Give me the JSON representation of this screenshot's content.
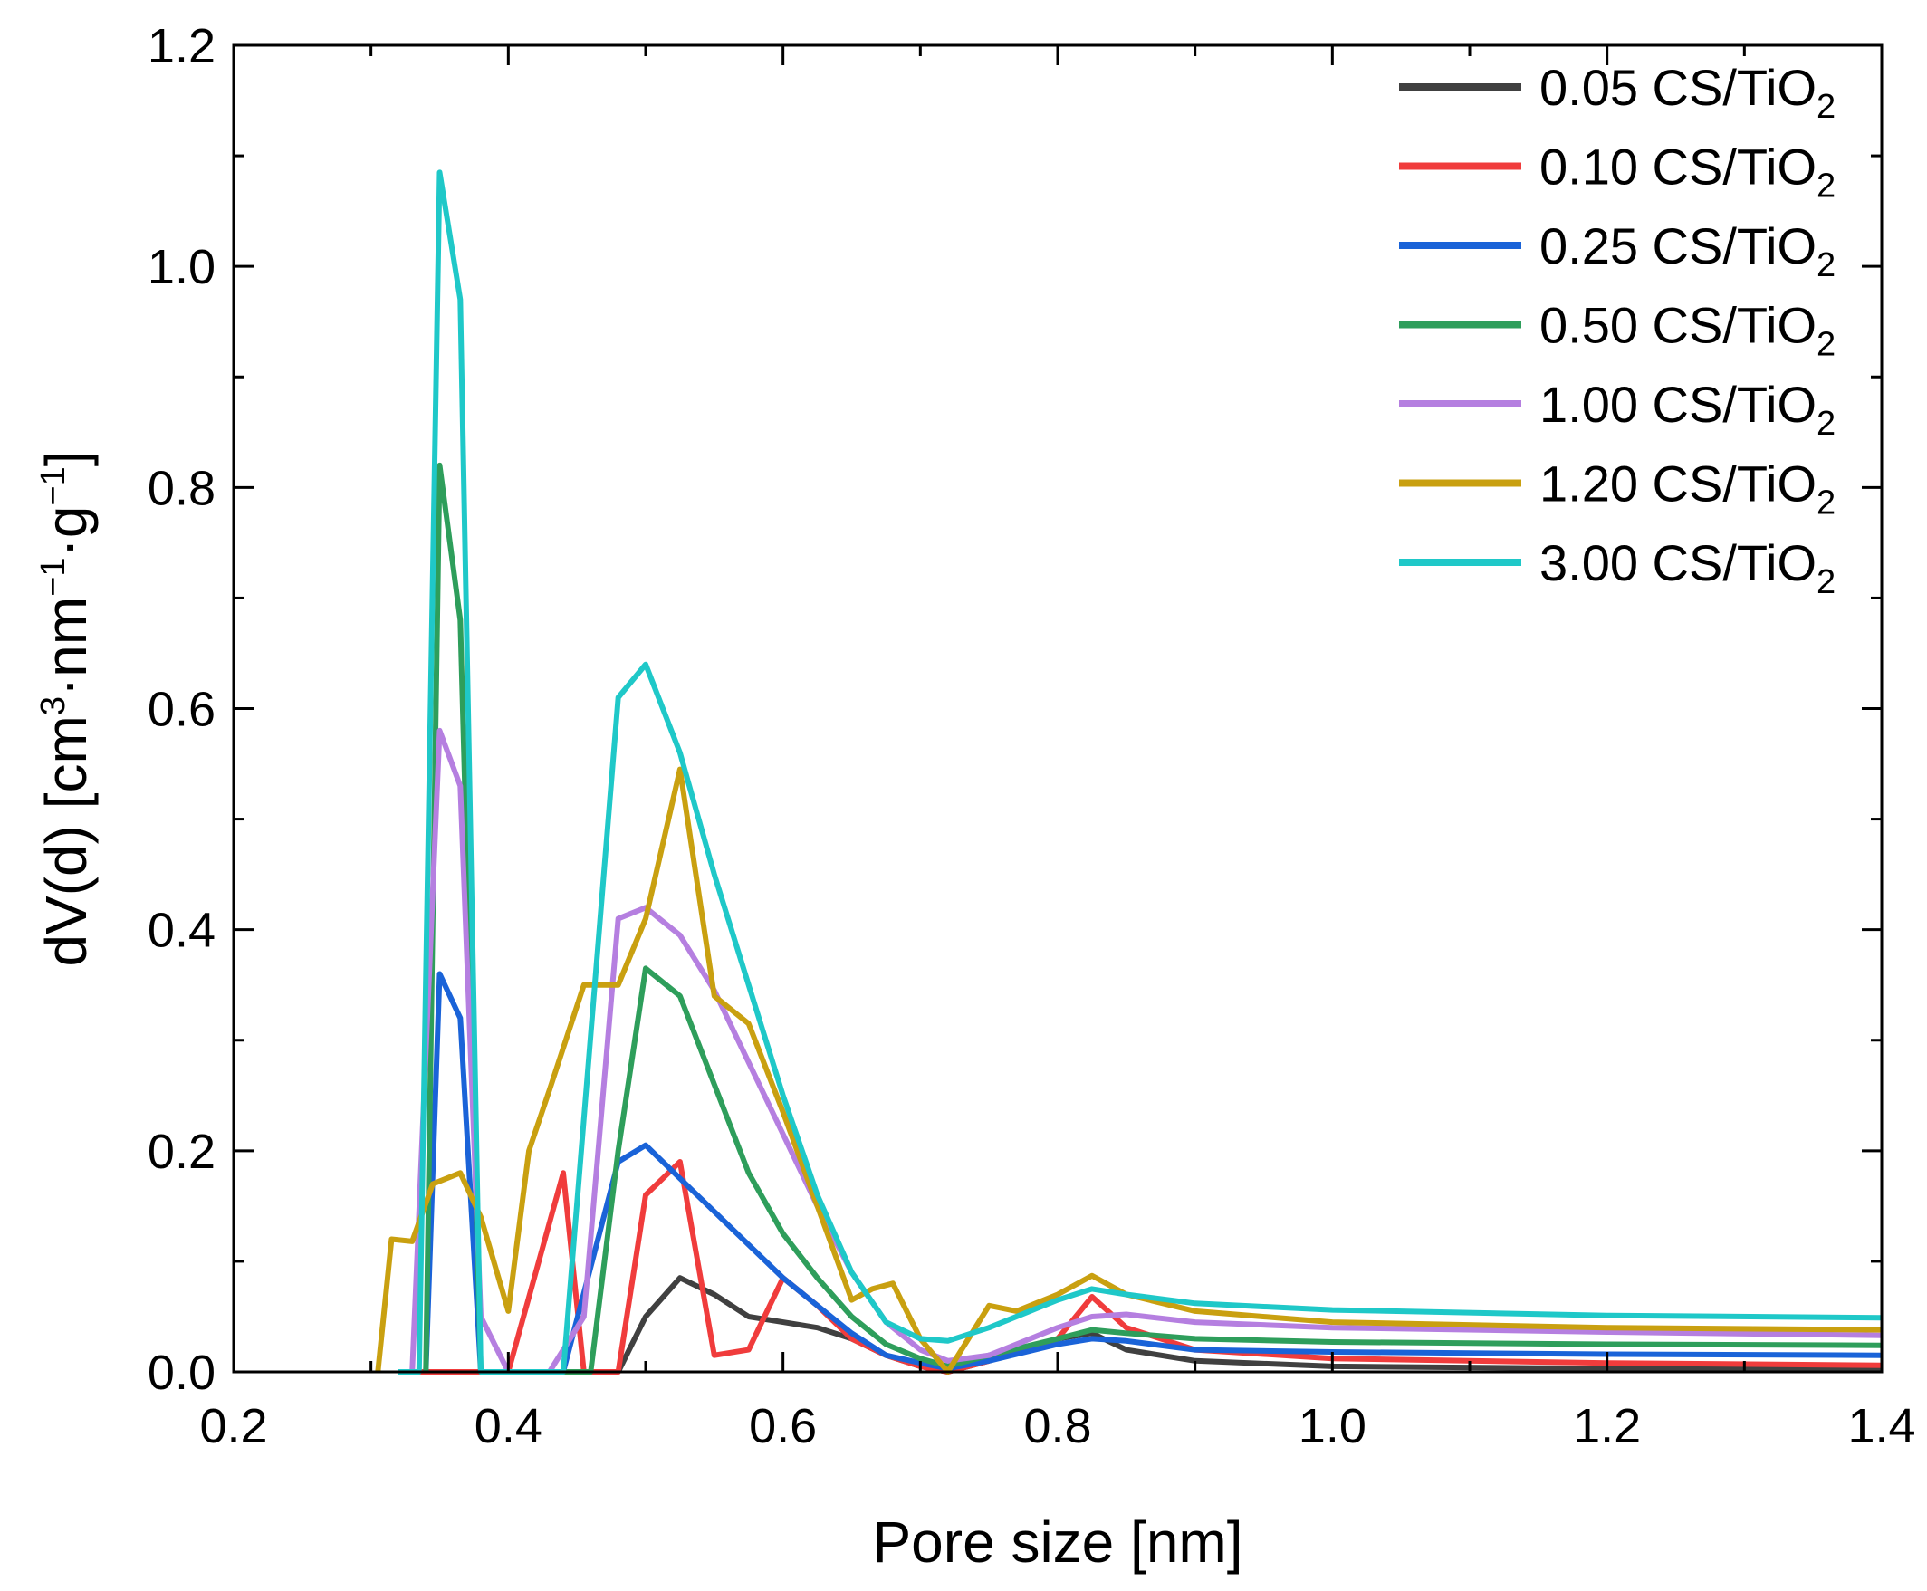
{
  "chart_data": {
    "type": "line",
    "title": "",
    "xlabel": "Pore size [nm]",
    "ylabel": {
      "base": "dV(d) [cm",
      "sup1": "3",
      "mid": "·nm",
      "sup2": "−1",
      "mid2": "·g",
      "sup3": "−1",
      "end": "]"
    },
    "xlim": [
      0.2,
      1.4
    ],
    "ylim": [
      0.0,
      1.2
    ],
    "xticks": [
      "0.2",
      "0.4",
      "0.6",
      "0.8",
      "1.0",
      "1.2",
      "1.4"
    ],
    "yticks": [
      "0.0",
      "0.2",
      "0.4",
      "0.6",
      "0.8",
      "1.0",
      "1.2"
    ],
    "legend_position": "top-right",
    "series": [
      {
        "name": "0.05 CS/TiO",
        "sub": "2",
        "color": "#404040",
        "points": [
          [
            0.48,
            0.0
          ],
          [
            0.5,
            0.05
          ],
          [
            0.525,
            0.085
          ],
          [
            0.55,
            0.07
          ],
          [
            0.575,
            0.05
          ],
          [
            0.6,
            0.045
          ],
          [
            0.625,
            0.04
          ],
          [
            0.65,
            0.03
          ],
          [
            0.675,
            0.015
          ],
          [
            0.7,
            0.005
          ],
          [
            0.72,
            0.0
          ],
          [
            0.75,
            0.01
          ],
          [
            0.8,
            0.03
          ],
          [
            0.825,
            0.035
          ],
          [
            0.85,
            0.02
          ],
          [
            0.9,
            0.01
          ],
          [
            1.0,
            0.005
          ],
          [
            1.2,
            0.003
          ],
          [
            1.4,
            0.002
          ]
        ]
      },
      {
        "name": "0.10 CS/TiO",
        "sub": "2",
        "color": "#f03c3c",
        "points": [
          [
            0.33,
            0.0
          ],
          [
            0.4,
            0.0
          ],
          [
            0.44,
            0.18
          ],
          [
            0.455,
            0.0
          ],
          [
            0.48,
            0.0
          ],
          [
            0.5,
            0.16
          ],
          [
            0.525,
            0.19
          ],
          [
            0.55,
            0.015
          ],
          [
            0.575,
            0.02
          ],
          [
            0.6,
            0.085
          ],
          [
            0.625,
            0.06
          ],
          [
            0.65,
            0.03
          ],
          [
            0.675,
            0.015
          ],
          [
            0.7,
            0.005
          ],
          [
            0.72,
            0.0
          ],
          [
            0.75,
            0.01
          ],
          [
            0.8,
            0.03
          ],
          [
            0.825,
            0.068
          ],
          [
            0.85,
            0.04
          ],
          [
            0.9,
            0.02
          ],
          [
            1.0,
            0.012
          ],
          [
            1.2,
            0.008
          ],
          [
            1.4,
            0.006
          ]
        ]
      },
      {
        "name": "0.25 CS/TiO",
        "sub": "2",
        "color": "#1a63d8",
        "points": [
          [
            0.34,
            0.0
          ],
          [
            0.35,
            0.36
          ],
          [
            0.365,
            0.32
          ],
          [
            0.38,
            0.0
          ],
          [
            0.44,
            0.0
          ],
          [
            0.48,
            0.19
          ],
          [
            0.5,
            0.205
          ],
          [
            0.525,
            0.175
          ],
          [
            0.55,
            0.145
          ],
          [
            0.575,
            0.115
          ],
          [
            0.6,
            0.085
          ],
          [
            0.625,
            0.06
          ],
          [
            0.65,
            0.035
          ],
          [
            0.675,
            0.015
          ],
          [
            0.7,
            0.008
          ],
          [
            0.72,
            0.003
          ],
          [
            0.75,
            0.01
          ],
          [
            0.8,
            0.025
          ],
          [
            0.825,
            0.03
          ],
          [
            0.85,
            0.028
          ],
          [
            0.9,
            0.02
          ],
          [
            1.0,
            0.018
          ],
          [
            1.2,
            0.016
          ],
          [
            1.4,
            0.015
          ]
        ]
      },
      {
        "name": "0.50 CS/TiO",
        "sub": "2",
        "color": "#2e9e5b",
        "points": [
          [
            0.34,
            0.0
          ],
          [
            0.35,
            0.82
          ],
          [
            0.365,
            0.68
          ],
          [
            0.38,
            0.0
          ],
          [
            0.46,
            0.0
          ],
          [
            0.48,
            0.2
          ],
          [
            0.5,
            0.365
          ],
          [
            0.525,
            0.34
          ],
          [
            0.55,
            0.26
          ],
          [
            0.575,
            0.18
          ],
          [
            0.6,
            0.125
          ],
          [
            0.625,
            0.085
          ],
          [
            0.65,
            0.05
          ],
          [
            0.675,
            0.025
          ],
          [
            0.7,
            0.012
          ],
          [
            0.72,
            0.005
          ],
          [
            0.75,
            0.015
          ],
          [
            0.8,
            0.03
          ],
          [
            0.825,
            0.038
          ],
          [
            0.85,
            0.035
          ],
          [
            0.9,
            0.03
          ],
          [
            1.0,
            0.027
          ],
          [
            1.2,
            0.025
          ],
          [
            1.4,
            0.024
          ]
        ]
      },
      {
        "name": "1.00 CS/TiO",
        "sub": "2",
        "color": "#b57fe0",
        "points": [
          [
            0.33,
            0.0
          ],
          [
            0.35,
            0.58
          ],
          [
            0.365,
            0.53
          ],
          [
            0.38,
            0.05
          ],
          [
            0.4,
            0.0
          ],
          [
            0.43,
            0.0
          ],
          [
            0.455,
            0.05
          ],
          [
            0.48,
            0.41
          ],
          [
            0.5,
            0.42
          ],
          [
            0.525,
            0.395
          ],
          [
            0.55,
            0.345
          ],
          [
            0.575,
            0.28
          ],
          [
            0.6,
            0.215
          ],
          [
            0.625,
            0.15
          ],
          [
            0.65,
            0.09
          ],
          [
            0.675,
            0.045
          ],
          [
            0.7,
            0.02
          ],
          [
            0.72,
            0.01
          ],
          [
            0.75,
            0.015
          ],
          [
            0.8,
            0.04
          ],
          [
            0.825,
            0.05
          ],
          [
            0.85,
            0.052
          ],
          [
            0.9,
            0.045
          ],
          [
            1.0,
            0.04
          ],
          [
            1.2,
            0.036
          ],
          [
            1.4,
            0.033
          ]
        ]
      },
      {
        "name": "1.20 CS/TiO",
        "sub": "2",
        "color": "#c9a010",
        "points": [
          [
            0.305,
            0.0
          ],
          [
            0.315,
            0.12
          ],
          [
            0.33,
            0.118
          ],
          [
            0.345,
            0.17
          ],
          [
            0.365,
            0.18
          ],
          [
            0.38,
            0.14
          ],
          [
            0.4,
            0.055
          ],
          [
            0.415,
            0.2
          ],
          [
            0.43,
            0.255
          ],
          [
            0.455,
            0.35
          ],
          [
            0.48,
            0.35
          ],
          [
            0.5,
            0.41
          ],
          [
            0.525,
            0.545
          ],
          [
            0.55,
            0.34
          ],
          [
            0.575,
            0.315
          ],
          [
            0.6,
            0.235
          ],
          [
            0.625,
            0.15
          ],
          [
            0.65,
            0.065
          ],
          [
            0.665,
            0.075
          ],
          [
            0.68,
            0.08
          ],
          [
            0.7,
            0.03
          ],
          [
            0.72,
            0.0
          ],
          [
            0.75,
            0.06
          ],
          [
            0.77,
            0.055
          ],
          [
            0.8,
            0.07
          ],
          [
            0.825,
            0.087
          ],
          [
            0.85,
            0.07
          ],
          [
            0.9,
            0.055
          ],
          [
            1.0,
            0.045
          ],
          [
            1.2,
            0.04
          ],
          [
            1.4,
            0.038
          ]
        ]
      },
      {
        "name": "3.00 CS/TiO",
        "sub": "2",
        "color": "#1fc8c8",
        "points": [
          [
            0.32,
            0.0
          ],
          [
            0.335,
            0.0
          ],
          [
            0.35,
            1.085
          ],
          [
            0.365,
            0.97
          ],
          [
            0.38,
            0.0
          ],
          [
            0.44,
            0.0
          ],
          [
            0.48,
            0.61
          ],
          [
            0.5,
            0.64
          ],
          [
            0.525,
            0.56
          ],
          [
            0.55,
            0.45
          ],
          [
            0.575,
            0.35
          ],
          [
            0.6,
            0.25
          ],
          [
            0.625,
            0.16
          ],
          [
            0.65,
            0.09
          ],
          [
            0.675,
            0.045
          ],
          [
            0.7,
            0.03
          ],
          [
            0.72,
            0.028
          ],
          [
            0.75,
            0.04
          ],
          [
            0.8,
            0.065
          ],
          [
            0.825,
            0.075
          ],
          [
            0.85,
            0.07
          ],
          [
            0.9,
            0.062
          ],
          [
            1.0,
            0.056
          ],
          [
            1.2,
            0.051
          ],
          [
            1.4,
            0.049
          ]
        ]
      }
    ]
  }
}
